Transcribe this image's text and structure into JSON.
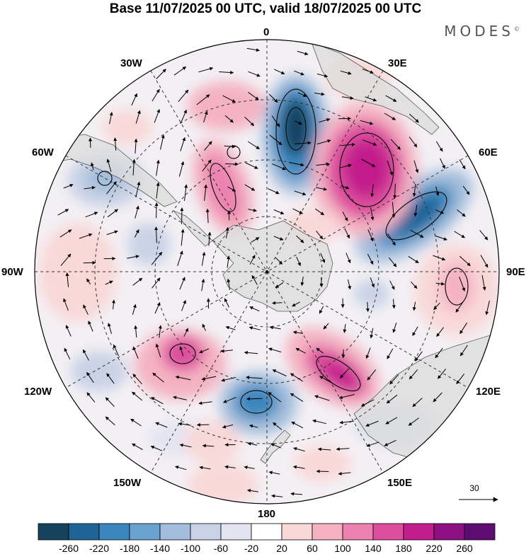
{
  "title": "Base 11/07/2025 00 UTC, valid 18/07/2025 00 UTC",
  "brand": {
    "text": "MODES",
    "mark": "©"
  },
  "map": {
    "projection": "south-polar-stereographic",
    "longitude_labels": {
      "l0": "0",
      "l30e": "30E",
      "l60e": "60E",
      "l90e": "90E",
      "l120e": "120E",
      "l150e": "150E",
      "l180": "180",
      "l150w": "150W",
      "l120w": "120W",
      "l90w": "90W",
      "l60w": "60W",
      "l30w": "30W"
    },
    "reference_vector": {
      "value": "30",
      "icon": "arrow-right-icon"
    }
  },
  "colorbar": {
    "ticks": [
      "-260",
      "-220",
      "-180",
      "-140",
      "-100",
      "-60",
      "-20",
      "20",
      "60",
      "100",
      "140",
      "180",
      "220",
      "260"
    ],
    "colors": [
      "#17425e",
      "#1f6496",
      "#3b86bd",
      "#6aa3cf",
      "#a3bedc",
      "#c9d2e6",
      "#e4e4f1",
      "#ffffff",
      "#f9d8d8",
      "#f4b2c2",
      "#ec82b0",
      "#dd4f9e",
      "#c21d8c",
      "#8e0f83",
      "#5d0c72"
    ]
  },
  "colors": {
    "land": "#d9d9d9",
    "coast": "#5a5a5a",
    "grid": "#333333"
  }
}
